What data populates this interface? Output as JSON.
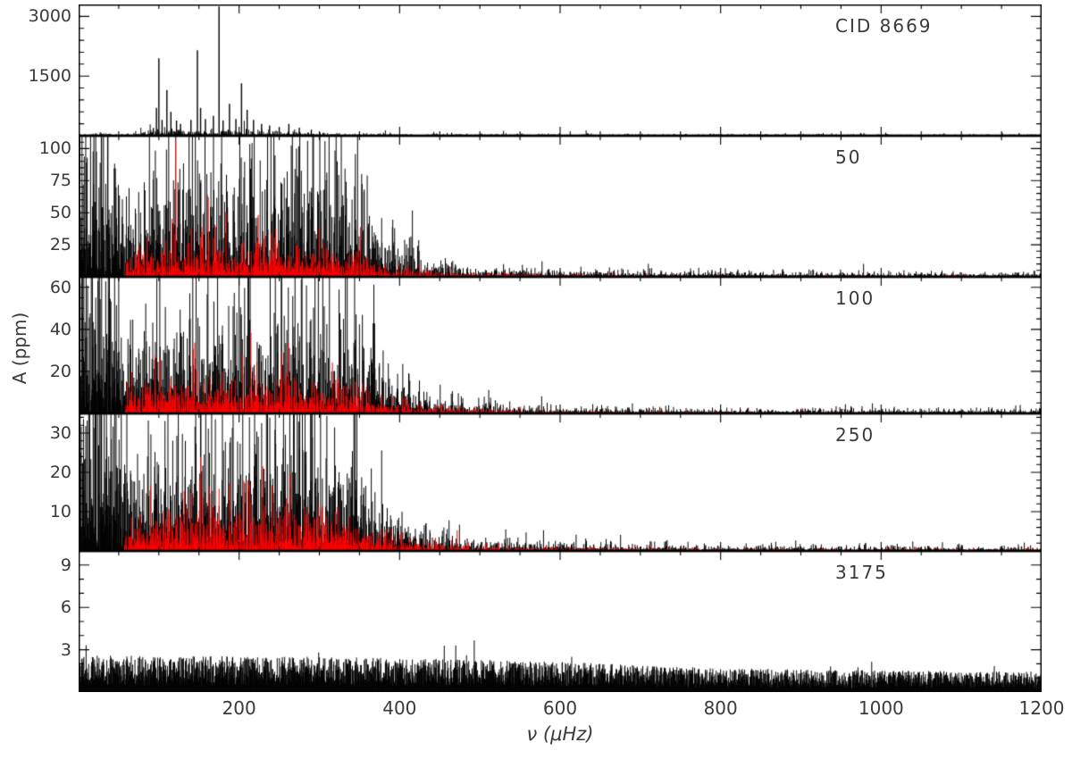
{
  "axes": {
    "x_label": "ν (μHz)",
    "y_label": "A (ppm)",
    "xlim": [
      0,
      1200
    ],
    "x_ticks": [
      200,
      400,
      600,
      800,
      1000,
      1200
    ],
    "x_minor_step": 50
  },
  "chart_data": {
    "type": "line",
    "title": "CID 8669",
    "colors": {
      "black": "#000000",
      "red": "#ff0000"
    },
    "panels": [
      {
        "label": "CID 8669",
        "ylim": [
          0,
          3300
        ],
        "yticks": [
          1500,
          3000
        ],
        "y_minor_step": 300,
        "seed": 11,
        "style": "peaks",
        "noise_floor": [
          [
            0,
            55
          ],
          [
            70,
            55
          ],
          [
            85,
            150
          ],
          [
            120,
            170
          ],
          [
            200,
            150
          ],
          [
            260,
            110
          ],
          [
            300,
            70
          ],
          [
            400,
            45
          ],
          [
            1200,
            30
          ]
        ],
        "peaks": [
          [
            97,
            700
          ],
          [
            100,
            1950
          ],
          [
            104,
            400
          ],
          [
            110,
            1150
          ],
          [
            115,
            600
          ],
          [
            122,
            380
          ],
          [
            127,
            300
          ],
          [
            140,
            400
          ],
          [
            148,
            2150
          ],
          [
            152,
            700
          ],
          [
            158,
            420
          ],
          [
            168,
            500
          ],
          [
            175,
            3250
          ],
          [
            180,
            380
          ],
          [
            188,
            800
          ],
          [
            196,
            420
          ],
          [
            203,
            1320
          ],
          [
            210,
            650
          ],
          [
            218,
            400
          ],
          [
            228,
            300
          ],
          [
            238,
            260
          ],
          [
            250,
            220
          ],
          [
            262,
            300
          ],
          [
            275,
            200
          ],
          [
            290,
            150
          ]
        ]
      },
      {
        "label": "50",
        "ylim": [
          0,
          110
        ],
        "yticks": [
          25,
          50,
          75,
          100
        ],
        "y_minor_step": 5,
        "seed": 22,
        "style": "forest",
        "black_env": [
          [
            0,
            150
          ],
          [
            50,
            140
          ],
          [
            58,
            70
          ],
          [
            70,
            60
          ],
          [
            95,
            85
          ],
          [
            150,
            95
          ],
          [
            210,
            100
          ],
          [
            260,
            103
          ],
          [
            320,
            95
          ],
          [
            350,
            75
          ],
          [
            370,
            45
          ],
          [
            400,
            26
          ],
          [
            430,
            17
          ],
          [
            460,
            11
          ],
          [
            500,
            8
          ],
          [
            560,
            6
          ],
          [
            650,
            4.5
          ],
          [
            800,
            3.5
          ],
          [
            1200,
            3
          ]
        ],
        "red_env": [
          [
            0,
            0
          ],
          [
            56,
            0
          ],
          [
            60,
            16
          ],
          [
            90,
            20
          ],
          [
            150,
            23
          ],
          [
            250,
            25
          ],
          [
            320,
            21
          ],
          [
            350,
            16
          ],
          [
            370,
            10
          ],
          [
            400,
            7
          ],
          [
            430,
            5
          ],
          [
            460,
            3.5
          ],
          [
            500,
            2.8
          ],
          [
            560,
            2
          ],
          [
            650,
            1.5
          ],
          [
            800,
            1
          ],
          [
            1200,
            0.8
          ]
        ]
      },
      {
        "label": "100",
        "ylim": [
          0,
          65
        ],
        "yticks": [
          20,
          40,
          60
        ],
        "y_minor_step": 5,
        "seed": 33,
        "style": "forest",
        "black_env": [
          [
            0,
            90
          ],
          [
            50,
            85
          ],
          [
            58,
            42
          ],
          [
            70,
            36
          ],
          [
            95,
            50
          ],
          [
            150,
            56
          ],
          [
            210,
            60
          ],
          [
            260,
            61
          ],
          [
            320,
            56
          ],
          [
            350,
            44
          ],
          [
            370,
            27
          ],
          [
            400,
            15
          ],
          [
            430,
            10
          ],
          [
            460,
            7
          ],
          [
            500,
            5
          ],
          [
            560,
            3.5
          ],
          [
            650,
            2.8
          ],
          [
            800,
            2.2
          ],
          [
            1200,
            1.8
          ]
        ],
        "red_env": [
          [
            0,
            0
          ],
          [
            56,
            0
          ],
          [
            60,
            11
          ],
          [
            90,
            13
          ],
          [
            150,
            16
          ],
          [
            250,
            17
          ],
          [
            320,
            14
          ],
          [
            350,
            11
          ],
          [
            370,
            7
          ],
          [
            400,
            4.5
          ],
          [
            430,
            3.2
          ],
          [
            460,
            2.4
          ],
          [
            500,
            1.8
          ],
          [
            560,
            1.3
          ],
          [
            650,
            1
          ],
          [
            800,
            0.7
          ],
          [
            1200,
            0.5
          ]
        ]
      },
      {
        "label": "250",
        "ylim": [
          0,
          35
        ],
        "yticks": [
          10,
          20,
          30
        ],
        "y_minor_step": 2,
        "seed": 44,
        "style": "forest",
        "black_env": [
          [
            0,
            55
          ],
          [
            50,
            50
          ],
          [
            58,
            25
          ],
          [
            70,
            21
          ],
          [
            95,
            28
          ],
          [
            150,
            32
          ],
          [
            210,
            34
          ],
          [
            260,
            35
          ],
          [
            320,
            32
          ],
          [
            350,
            25
          ],
          [
            370,
            15
          ],
          [
            400,
            9
          ],
          [
            430,
            6
          ],
          [
            460,
            4.2
          ],
          [
            500,
            3
          ],
          [
            560,
            2.2
          ],
          [
            650,
            1.7
          ],
          [
            800,
            1.4
          ],
          [
            1200,
            1.1
          ]
        ],
        "red_env": [
          [
            0,
            0
          ],
          [
            56,
            0
          ],
          [
            60,
            7
          ],
          [
            90,
            8.5
          ],
          [
            150,
            10
          ],
          [
            250,
            10.5
          ],
          [
            320,
            9
          ],
          [
            350,
            7
          ],
          [
            370,
            4.5
          ],
          [
            400,
            3
          ],
          [
            430,
            2.2
          ],
          [
            460,
            1.6
          ],
          [
            500,
            1.2
          ],
          [
            560,
            0.9
          ],
          [
            650,
            0.7
          ],
          [
            800,
            0.5
          ],
          [
            1200,
            0.4
          ]
        ]
      },
      {
        "label": "3175",
        "ylim": [
          0,
          10
        ],
        "yticks": [
          3,
          6,
          9
        ],
        "y_minor_step": 1,
        "seed": 55,
        "style": "band",
        "black_env": [
          [
            0,
            2.6
          ],
          [
            300,
            2.5
          ],
          [
            500,
            2.3
          ],
          [
            620,
            2.1
          ],
          [
            700,
            1.9
          ],
          [
            800,
            1.7
          ],
          [
            950,
            1.55
          ],
          [
            1200,
            1.45
          ]
        ]
      }
    ]
  }
}
